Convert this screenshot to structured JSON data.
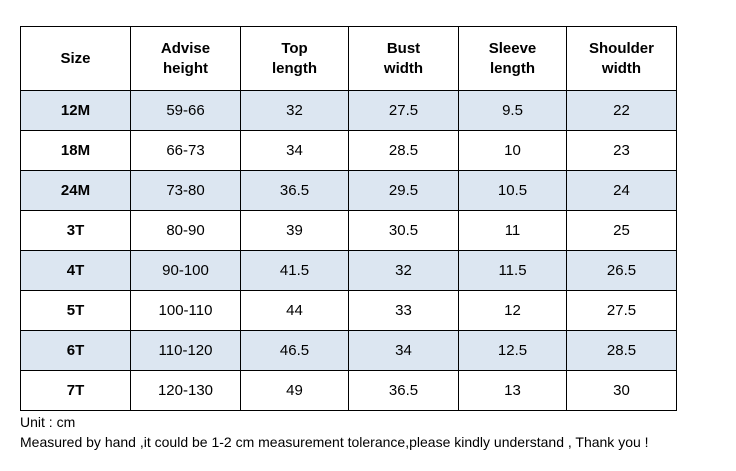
{
  "table": {
    "headers": [
      {
        "line1": "Size",
        "line2": ""
      },
      {
        "line1": "Advise",
        "line2": "height"
      },
      {
        "line1": "Top",
        "line2": "length"
      },
      {
        "line1": "Bust",
        "line2": "width"
      },
      {
        "line1": "Sleeve",
        "line2": "length"
      },
      {
        "line1": "Shoulder",
        "line2": "width"
      }
    ],
    "rows": [
      [
        "12M",
        "59-66",
        "32",
        "27.5",
        "9.5",
        "22"
      ],
      [
        "18M",
        "66-73",
        "34",
        "28.5",
        "10",
        "23"
      ],
      [
        "24M",
        "73-80",
        "36.5",
        "29.5",
        "10.5",
        "24"
      ],
      [
        "3T",
        "80-90",
        "39",
        "30.5",
        "11",
        "25"
      ],
      [
        "4T",
        "90-100",
        "41.5",
        "32",
        "11.5",
        "26.5"
      ],
      [
        "5T",
        "100-110",
        "44",
        "33",
        "12",
        "27.5"
      ],
      [
        "6T",
        "110-120",
        "46.5",
        "34",
        "12.5",
        "28.5"
      ],
      [
        "7T",
        "120-130",
        "49",
        "36.5",
        "13",
        "30"
      ]
    ]
  },
  "notes": {
    "unit": "Unit : cm",
    "disclaimer": "Measured by hand ,it could be 1-2 cm measurement tolerance,please kindly understand , Thank you !"
  },
  "colors": {
    "shaded_row": "#dce6f1",
    "border": "#000000"
  }
}
